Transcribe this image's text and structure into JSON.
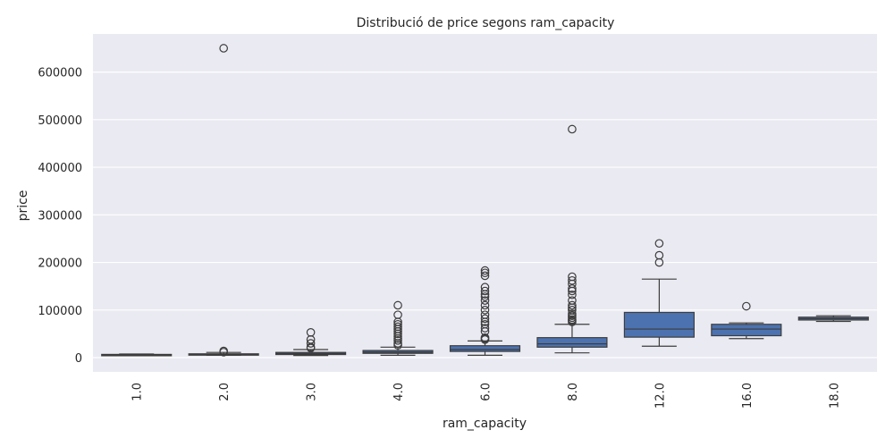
{
  "chart_data": {
    "type": "box",
    "title": "Distribució de price segons ram_capacity",
    "xlabel": "ram_capacity",
    "ylabel": "price",
    "ylim": [
      -30000,
      680000
    ],
    "yticks": [
      0,
      100000,
      200000,
      300000,
      400000,
      500000,
      600000
    ],
    "ytick_labels": [
      "0",
      "100000",
      "200000",
      "300000",
      "400000",
      "500000",
      "600000"
    ],
    "grid": true,
    "box_color": "#4c72b0",
    "background_color": "#eaeaf2",
    "categories": [
      "1.0",
      "2.0",
      "3.0",
      "4.0",
      "6.0",
      "8.0",
      "12.0",
      "16.0",
      "18.0"
    ],
    "boxes": [
      {
        "q1": 4500,
        "median": 5500,
        "q3": 6800,
        "whisker_low": 4000,
        "whisker_high": 7500,
        "outliers": []
      },
      {
        "q1": 5800,
        "median": 6800,
        "q3": 8000,
        "whisker_low": 5000,
        "whisker_high": 11000,
        "outliers": [
          650000,
          14000,
          11500
        ]
      },
      {
        "q1": 6500,
        "median": 8500,
        "q3": 11000,
        "whisker_low": 4500,
        "whisker_high": 17000,
        "outliers": [
          53000,
          38000,
          30000,
          22000,
          20000
        ]
      },
      {
        "q1": 9000,
        "median": 11500,
        "q3": 15000,
        "whisker_low": 5000,
        "whisker_high": 22000,
        "outliers": [
          110000,
          90000,
          75000,
          70000,
          65000,
          60000,
          55000,
          50000,
          45000,
          40000,
          36000,
          30000,
          26000
        ]
      },
      {
        "q1": 13000,
        "median": 17000,
        "q3": 25000,
        "whisker_low": 5000,
        "whisker_high": 35000,
        "outliers": [
          183000,
          178000,
          172000,
          148000,
          140000,
          133000,
          128000,
          120000,
          110000,
          100000,
          90000,
          82000,
          75000,
          70000,
          62000,
          55000,
          42000,
          40000,
          38000
        ]
      },
      {
        "q1": 22000,
        "median": 29000,
        "q3": 42000,
        "whisker_low": 10000,
        "whisker_high": 70000,
        "outliers": [
          480000,
          170000,
          162000,
          155000,
          145000,
          140000,
          132000,
          120000,
          110000,
          105000,
          100000,
          92000,
          88000,
          84000,
          80000,
          78000,
          75000
        ]
      },
      {
        "q1": 43000,
        "median": 60000,
        "q3": 95000,
        "whisker_low": 24000,
        "whisker_high": 165000,
        "outliers": [
          240000,
          215000,
          200000
        ]
      },
      {
        "q1": 46000,
        "median": 60000,
        "q3": 70000,
        "whisker_low": 40000,
        "whisker_high": 73000,
        "outliers": [
          108000
        ]
      },
      {
        "q1": 79000,
        "median": 82000,
        "q3": 85000,
        "whisker_low": 76000,
        "whisker_high": 88000,
        "outliers": []
      }
    ]
  }
}
